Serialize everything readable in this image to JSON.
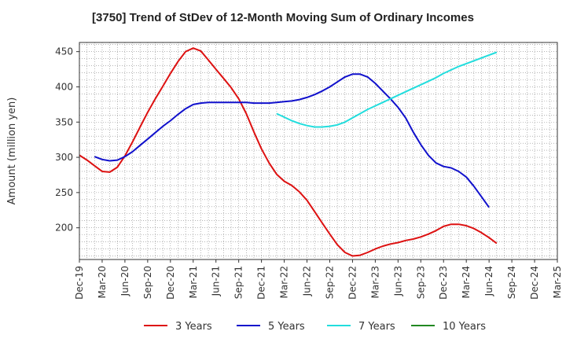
{
  "chart_data": {
    "type": "line",
    "title": "[3750]  Trend of StDev of 12-Month Moving Sum of Ordinary Incomes",
    "ylabel": "Amount (million yen)",
    "xlabel": "",
    "ylim": [
      155,
      463
    ],
    "yticks": [
      200,
      250,
      300,
      350,
      400,
      450
    ],
    "x_tick_labels": [
      "Dec-19",
      "Mar-20",
      "Jun-20",
      "Sep-20",
      "Dec-20",
      "Mar-21",
      "Jun-21",
      "Sep-21",
      "Dec-21",
      "Mar-22",
      "Jun-22",
      "Sep-22",
      "Dec-22",
      "Mar-23",
      "Jun-23",
      "Sep-23",
      "Dec-23",
      "Mar-24",
      "Jun-24",
      "Sep-24",
      "Dec-24",
      "Mar-25"
    ],
    "grid": true,
    "legend_position": "bottom",
    "series": [
      {
        "name": "3 Years",
        "color": "#dd1111",
        "points": [
          [
            "2019-12",
            303
          ],
          [
            "2020-01",
            296
          ],
          [
            "2020-02",
            288
          ],
          [
            "2020-03",
            280
          ],
          [
            "2020-04",
            279
          ],
          [
            "2020-05",
            286
          ],
          [
            "2020-06",
            302
          ],
          [
            "2020-07",
            322
          ],
          [
            "2020-08",
            343
          ],
          [
            "2020-09",
            364
          ],
          [
            "2020-10",
            383
          ],
          [
            "2020-11",
            401
          ],
          [
            "2020-12",
            419
          ],
          [
            "2021-01",
            436
          ],
          [
            "2021-02",
            450
          ],
          [
            "2021-03",
            455
          ],
          [
            "2021-04",
            451
          ],
          [
            "2021-05",
            438
          ],
          [
            "2021-06",
            425
          ],
          [
            "2021-07",
            412
          ],
          [
            "2021-08",
            399
          ],
          [
            "2021-09",
            383
          ],
          [
            "2021-10",
            362
          ],
          [
            "2021-11",
            336
          ],
          [
            "2021-12",
            312
          ],
          [
            "2022-01",
            292
          ],
          [
            "2022-02",
            276
          ],
          [
            "2022-03",
            266
          ],
          [
            "2022-04",
            260
          ],
          [
            "2022-05",
            251
          ],
          [
            "2022-06",
            239
          ],
          [
            "2022-07",
            223
          ],
          [
            "2022-08",
            207
          ],
          [
            "2022-09",
            191
          ],
          [
            "2022-10",
            176
          ],
          [
            "2022-11",
            165
          ],
          [
            "2022-12",
            160
          ],
          [
            "2023-01",
            161
          ],
          [
            "2023-02",
            165
          ],
          [
            "2023-03",
            170
          ],
          [
            "2023-04",
            174
          ],
          [
            "2023-05",
            177
          ],
          [
            "2023-06",
            179
          ],
          [
            "2023-07",
            182
          ],
          [
            "2023-08",
            184
          ],
          [
            "2023-09",
            187
          ],
          [
            "2023-10",
            191
          ],
          [
            "2023-11",
            196
          ],
          [
            "2023-12",
            202
          ],
          [
            "2024-01",
            205
          ],
          [
            "2024-02",
            205
          ],
          [
            "2024-03",
            203
          ],
          [
            "2024-04",
            199
          ],
          [
            "2024-05",
            193
          ],
          [
            "2024-06",
            186
          ],
          [
            "2024-07",
            178
          ]
        ]
      },
      {
        "name": "5 Years",
        "color": "#1111cc",
        "points": [
          [
            "2020-02",
            301
          ],
          [
            "2020-03",
            297
          ],
          [
            "2020-04",
            295
          ],
          [
            "2020-05",
            296
          ],
          [
            "2020-06",
            301
          ],
          [
            "2020-07",
            308
          ],
          [
            "2020-08",
            317
          ],
          [
            "2020-09",
            326
          ],
          [
            "2020-10",
            335
          ],
          [
            "2020-11",
            344
          ],
          [
            "2020-12",
            352
          ],
          [
            "2021-01",
            361
          ],
          [
            "2021-02",
            369
          ],
          [
            "2021-03",
            375
          ],
          [
            "2021-04",
            377
          ],
          [
            "2021-05",
            378
          ],
          [
            "2021-06",
            378
          ],
          [
            "2021-07",
            378
          ],
          [
            "2021-08",
            378
          ],
          [
            "2021-09",
            378
          ],
          [
            "2021-10",
            378
          ],
          [
            "2021-11",
            377
          ],
          [
            "2021-12",
            377
          ],
          [
            "2022-01",
            377
          ],
          [
            "2022-02",
            378
          ],
          [
            "2022-03",
            379
          ],
          [
            "2022-04",
            380
          ],
          [
            "2022-05",
            382
          ],
          [
            "2022-06",
            385
          ],
          [
            "2022-07",
            389
          ],
          [
            "2022-08",
            394
          ],
          [
            "2022-09",
            400
          ],
          [
            "2022-10",
            407
          ],
          [
            "2022-11",
            414
          ],
          [
            "2022-12",
            418
          ],
          [
            "2023-01",
            418
          ],
          [
            "2023-02",
            414
          ],
          [
            "2023-03",
            405
          ],
          [
            "2023-04",
            394
          ],
          [
            "2023-05",
            383
          ],
          [
            "2023-06",
            371
          ],
          [
            "2023-07",
            356
          ],
          [
            "2023-08",
            336
          ],
          [
            "2023-09",
            318
          ],
          [
            "2023-10",
            303
          ],
          [
            "2023-11",
            292
          ],
          [
            "2023-12",
            287
          ],
          [
            "2024-01",
            285
          ],
          [
            "2024-02",
            280
          ],
          [
            "2024-03",
            272
          ],
          [
            "2024-04",
            259
          ],
          [
            "2024-05",
            244
          ],
          [
            "2024-06",
            229
          ]
        ]
      },
      {
        "name": "7 Years",
        "color": "#22dddd",
        "points": [
          [
            "2022-02",
            362
          ],
          [
            "2022-03",
            357
          ],
          [
            "2022-04",
            352
          ],
          [
            "2022-05",
            348
          ],
          [
            "2022-06",
            345
          ],
          [
            "2022-07",
            343
          ],
          [
            "2022-08",
            343
          ],
          [
            "2022-09",
            344
          ],
          [
            "2022-10",
            346
          ],
          [
            "2022-11",
            350
          ],
          [
            "2022-12",
            356
          ],
          [
            "2023-01",
            362
          ],
          [
            "2023-02",
            368
          ],
          [
            "2023-03",
            373
          ],
          [
            "2023-04",
            378
          ],
          [
            "2023-05",
            383
          ],
          [
            "2023-06",
            388
          ],
          [
            "2023-07",
            393
          ],
          [
            "2023-08",
            398
          ],
          [
            "2023-09",
            403
          ],
          [
            "2023-10",
            408
          ],
          [
            "2023-11",
            413
          ],
          [
            "2023-12",
            419
          ],
          [
            "2024-01",
            424
          ],
          [
            "2024-02",
            429
          ],
          [
            "2024-03",
            433
          ],
          [
            "2024-04",
            437
          ],
          [
            "2024-05",
            441
          ],
          [
            "2024-06",
            445
          ],
          [
            "2024-07",
            449
          ]
        ]
      },
      {
        "name": "10 Years",
        "color": "#228822",
        "points": []
      }
    ]
  }
}
